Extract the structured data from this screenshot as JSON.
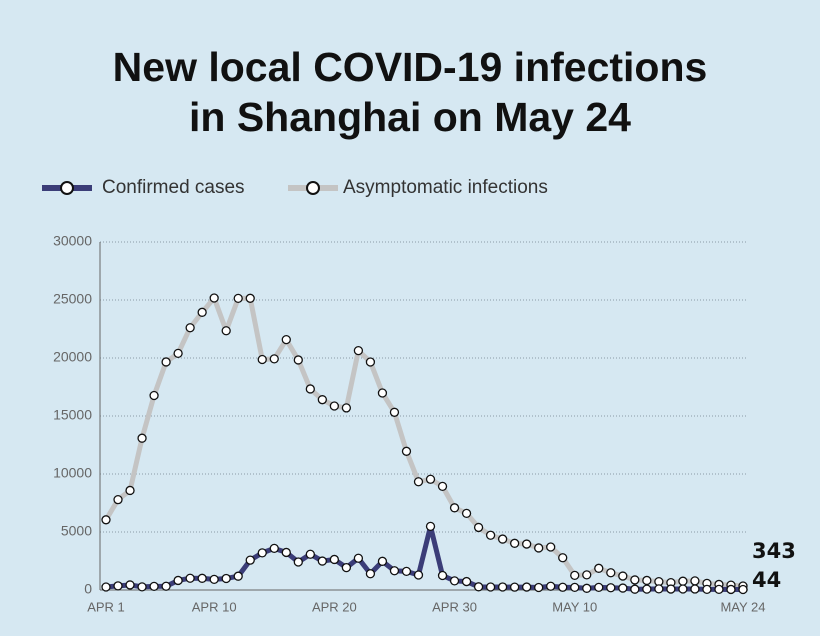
{
  "chart_data": {
    "type": "line",
    "title": [
      "New local COVID-19 infections",
      "in Shanghai on May 24"
    ],
    "categories": [
      "APR 1",
      null,
      null,
      null,
      null,
      null,
      null,
      null,
      null,
      "APR 10",
      null,
      null,
      null,
      null,
      null,
      null,
      null,
      null,
      null,
      "APR 20",
      null,
      null,
      null,
      null,
      null,
      null,
      null,
      null,
      null,
      "APR 30",
      null,
      null,
      null,
      null,
      null,
      null,
      null,
      null,
      null,
      "MAY 10",
      null,
      null,
      null,
      null,
      null,
      null,
      null,
      null,
      null,
      null,
      null,
      null,
      null,
      "MAY 24"
    ],
    "series": [
      {
        "name": "Confirmed cases",
        "color": "#3b3d78",
        "values": [
          260,
          358,
          438,
          268,
          311,
          322,
          824,
          1015,
          1006,
          914,
          994,
          1189,
          2573,
          3200,
          3590,
          3238,
          2417,
          3084,
          2494,
          2634,
          1931,
          2736,
          1401,
          2472,
          1661,
          1606,
          1292,
          5487,
          1249,
          788,
          727,
          274,
          260,
          261,
          245,
          253,
          215,
          322,
          234,
          228,
          144,
          227,
          194,
          166,
          69,
          77,
          96,
          82,
          88,
          84,
          52,
          55,
          48,
          44
        ]
      },
      {
        "name": "Asymptomatic infections",
        "color": "#c4c4c4",
        "values": [
          6051,
          7788,
          8581,
          13086,
          16766,
          19660,
          20398,
          22609,
          23937,
          25173,
          22348,
          25141,
          25146,
          19872,
          19923,
          21582,
          19831,
          17332,
          16407,
          15861,
          15698,
          20634,
          19657,
          16983,
          15319,
          11956,
          9330,
          9545,
          8932,
          7084,
          6606,
          5395,
          4722,
          4390,
          4024,
          3961,
          3625,
          3709,
          2780,
          1259,
          1305,
          1869,
          1487,
          1203,
          869,
          823,
          719,
          637,
          759,
          784,
          570,
          480,
          422,
          343
        ]
      }
    ],
    "ylim": [
      0,
      30000
    ],
    "yticks": [
      0,
      5000,
      10000,
      15000,
      20000,
      25000,
      30000
    ],
    "grid": true
  }
}
